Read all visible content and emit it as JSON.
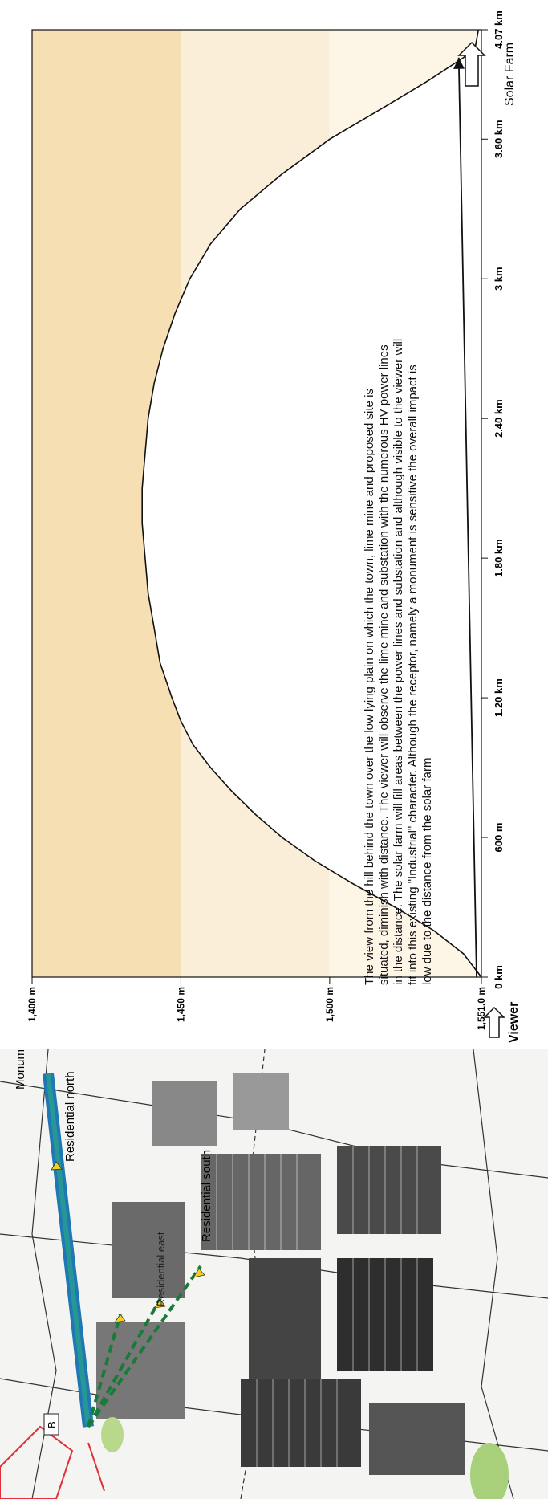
{
  "map": {
    "labels": {
      "monuments": "Monuments",
      "residential_north": "Residential north",
      "residential_south": "Residential south",
      "residential_east": "Residential east",
      "site_marker": "B"
    }
  },
  "profile": {
    "viewer_label": "Viewer",
    "target_label": "Solar Farm"
  },
  "description": {
    "lines": [
      "The view from the hill behind the town over the low lying plain on which the town, lime mine and proposed site is",
      "situated, diminish with distance. The viewer will observe the lime mine and substation with the numerous HV power lines",
      "in the distance. The solar farm will fill areas between the power lines and substation and although visible to the viewer will",
      "fit into this  existing \"Industrial\" character. Although the receptor, namely a monument is sensitive the overall impact is",
      "low due to the distance from the solar farm"
    ]
  },
  "chart_data": {
    "type": "area",
    "title": "",
    "xlabel": "",
    "ylabel": "",
    "x_tick_labels": [
      "0 km",
      "600 m",
      "1.20 km",
      "1.80 km",
      "2.40 km",
      "3 km",
      "3.60 km",
      "4.07 km"
    ],
    "x_ticks_m": [
      0,
      600,
      1200,
      1800,
      2400,
      3000,
      3600,
      4070
    ],
    "y_tick_labels": [
      "1,551.0 m",
      "1,500 m",
      "1,450 m",
      "1,400 m"
    ],
    "y_ticks_m": [
      1551,
      1500,
      1450,
      1400
    ],
    "xlim": [
      0,
      4070
    ],
    "ylim": [
      1400,
      1551
    ],
    "grid": false,
    "series": [
      {
        "x": [
          0,
          100,
          200,
          300,
          400,
          500,
          600,
          700,
          800,
          900,
          1000,
          1100,
          1200,
          1350,
          1500,
          1650,
          1800,
          1950,
          2100,
          2250,
          2400,
          2550,
          2700,
          2850,
          3000,
          3150,
          3300,
          3450,
          3600,
          3750,
          3850,
          3950,
          4000,
          4070
        ],
        "y": [
          1551,
          1545,
          1535,
          1522,
          1508,
          1495,
          1484,
          1475,
          1467,
          1460,
          1454,
          1450,
          1447,
          1443,
          1441,
          1439,
          1438,
          1437,
          1437,
          1438,
          1439,
          1441,
          1444,
          1448,
          1453,
          1460,
          1470,
          1484,
          1500,
          1520,
          1533,
          1545,
          1549,
          1550
        ]
      }
    ],
    "line_of_sight": {
      "x": [
        0,
        3950
      ],
      "y": [
        1551,
        1545
      ]
    }
  }
}
